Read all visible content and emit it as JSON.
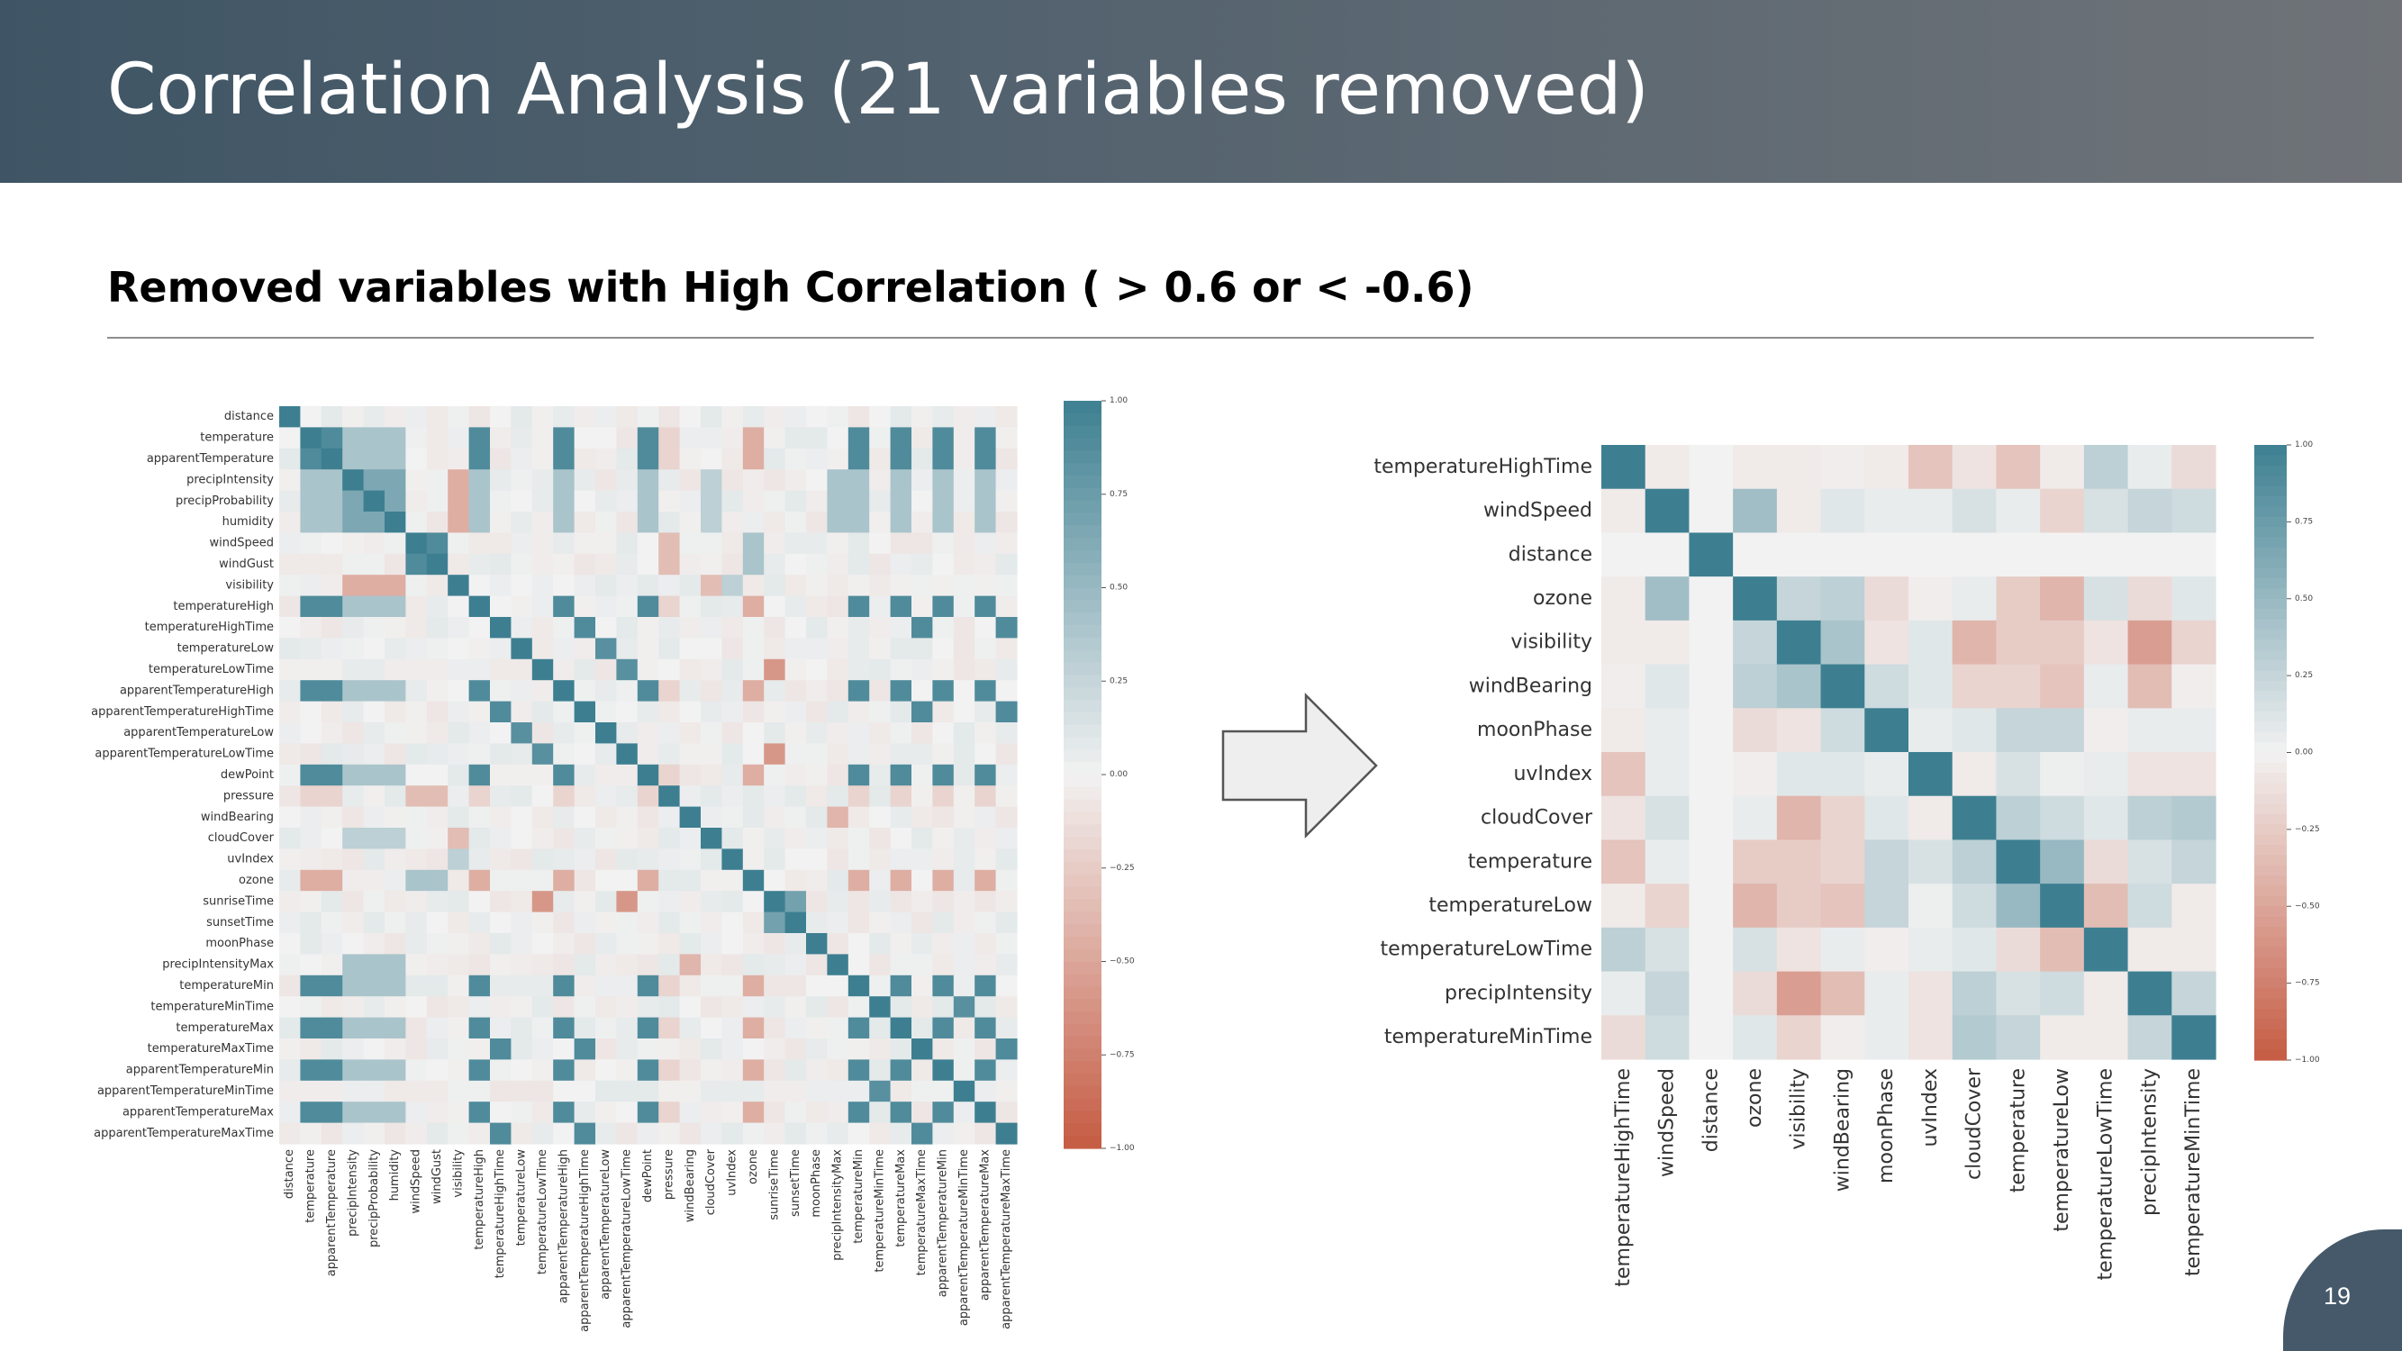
{
  "slide": {
    "title": "Correlation Analysis (21 variables removed)",
    "subtitle": "Removed variables with High Correlation ( > 0.6 or < -0.6)",
    "page_number": "19",
    "colors": {
      "header_start": "#3f5565",
      "header_end": "#6f7378",
      "positive": "#3d7f91",
      "neutral": "#f2f2f2",
      "negative": "#c65a42"
    },
    "icons": [
      "right-arrow-icon"
    ]
  },
  "chart_data": [
    {
      "type": "heatmap",
      "title": "",
      "variables": [
        "distance",
        "temperature",
        "apparentTemperature",
        "precipIntensity",
        "precipProbability",
        "humidity",
        "windSpeed",
        "windGust",
        "visibility",
        "temperatureHigh",
        "temperatureHighTime",
        "temperatureLow",
        "temperatureLowTime",
        "apparentTemperatureHigh",
        "apparentTemperatureHighTime",
        "apparentTemperatureLow",
        "apparentTemperatureLowTime",
        "dewPoint",
        "pressure",
        "windBearing",
        "cloudCover",
        "uvIndex",
        "ozone",
        "sunriseTime",
        "sunsetTime",
        "moonPhase",
        "precipIntensityMax",
        "temperatureMin",
        "temperatureMinTime",
        "temperatureMax",
        "temperatureMaxTime",
        "apparentTemperatureMin",
        "apparentTemperatureMinTime",
        "apparentTemperatureMax",
        "apparentTemperatureMaxTime"
      ],
      "colorbar": {
        "range": [
          -1.0,
          1.0
        ],
        "ticks": [
          "1.00",
          "0.75",
          "0.50",
          "0.25",
          "0.00",
          "−0.25",
          "−0.50",
          "−0.75",
          "−1.00"
        ]
      },
      "groups": [
        {
          "members": [
            1,
            2,
            9,
            13,
            17,
            27,
            29,
            31,
            33
          ],
          "value": 0.9
        },
        {
          "members": [
            3,
            4,
            5
          ],
          "value": 0.65
        },
        {
          "members": [
            6,
            7
          ],
          "value": 0.9
        },
        {
          "members": [
            10,
            14,
            30,
            34
          ],
          "value": 0.9
        },
        {
          "members": [
            11,
            15
          ],
          "value": 0.85
        },
        {
          "members": [
            12,
            16
          ],
          "value": 0.85
        },
        {
          "members": [
            28,
            32
          ],
          "value": 0.85
        }
      ],
      "pairs": [
        {
          "a": 8,
          "b": 5,
          "value": -0.7
        },
        {
          "a": 8,
          "b": 4,
          "value": -0.6
        },
        {
          "a": 8,
          "b": 3,
          "value": -0.45
        },
        {
          "a": 6,
          "b": 18,
          "value": -0.45
        },
        {
          "a": 7,
          "b": 18,
          "value": -0.35
        },
        {
          "a": 6,
          "b": 22,
          "value": 0.45
        },
        {
          "a": 7,
          "b": 22,
          "value": 0.4
        },
        {
          "a": 19,
          "b": 26,
          "value": -0.4
        },
        {
          "a": 3,
          "b": 26,
          "value": 0.45
        },
        {
          "a": 4,
          "b": 26,
          "value": 0.4
        },
        {
          "a": 23,
          "b": 12,
          "value": -0.6
        },
        {
          "a": 23,
          "b": 16,
          "value": -0.6
        },
        {
          "a": 23,
          "b": 24,
          "value": 0.7
        },
        {
          "a": 22,
          "b": 13,
          "value": -0.45
        },
        {
          "a": 22,
          "b": 1,
          "value": -0.3
        },
        {
          "a": 22,
          "b": 33,
          "value": -0.45
        },
        {
          "a": 20,
          "b": 5,
          "value": 0.3
        },
        {
          "a": 20,
          "b": 8,
          "value": -0.35
        },
        {
          "a": 21,
          "b": 8,
          "value": 0.3
        },
        {
          "a": 17,
          "b": 5,
          "value": 0.4
        },
        {
          "a": 18,
          "b": 1,
          "value": -0.2
        },
        {
          "a": 25,
          "b": 0,
          "value": 0.0
        }
      ]
    },
    {
      "type": "heatmap",
      "title": "",
      "variables": [
        "temperatureHighTime",
        "windSpeed",
        "distance",
        "ozone",
        "visibility",
        "windBearing",
        "moonPhase",
        "uvIndex",
        "cloudCover",
        "temperature",
        "temperatureLow",
        "temperatureLowTime",
        "precipIntensity",
        "temperatureMinTime"
      ],
      "colorbar": {
        "range": [
          -1.0,
          1.0
        ],
        "ticks": [
          "1.00",
          "0.75",
          "0.50",
          "0.25",
          "0.00",
          "−0.25",
          "−0.50",
          "−0.75",
          "−1.00"
        ]
      },
      "matrix": [
        [
          1.0,
          -0.05,
          0.0,
          -0.05,
          -0.05,
          -0.03,
          -0.05,
          -0.3,
          -0.1,
          -0.3,
          -0.05,
          0.3,
          0.05,
          -0.15
        ],
        [
          -0.05,
          1.0,
          0.0,
          0.45,
          -0.05,
          0.1,
          0.05,
          0.05,
          0.15,
          0.05,
          -0.2,
          0.15,
          0.25,
          0.2
        ],
        [
          0.0,
          0.0,
          1.0,
          0.0,
          0.0,
          0.0,
          0.0,
          0.0,
          0.0,
          0.0,
          0.0,
          0.0,
          0.0,
          0.0
        ],
        [
          -0.05,
          0.45,
          0.0,
          1.0,
          0.25,
          0.3,
          -0.15,
          -0.03,
          0.05,
          -0.25,
          -0.4,
          0.15,
          -0.15,
          0.1
        ],
        [
          -0.05,
          -0.05,
          0.0,
          0.25,
          1.0,
          0.4,
          -0.1,
          0.1,
          -0.4,
          -0.25,
          -0.25,
          -0.1,
          -0.55,
          -0.2
        ],
        [
          -0.03,
          0.1,
          0.0,
          0.3,
          0.4,
          1.0,
          0.2,
          0.1,
          -0.2,
          -0.2,
          -0.3,
          0.05,
          -0.35,
          -0.03
        ],
        [
          -0.05,
          0.05,
          0.0,
          -0.15,
          -0.1,
          0.2,
          1.0,
          0.05,
          0.1,
          0.25,
          0.25,
          -0.03,
          0.05,
          0.05
        ],
        [
          -0.3,
          0.05,
          0.0,
          -0.03,
          0.1,
          0.1,
          0.05,
          1.0,
          -0.05,
          0.15,
          0.03,
          0.05,
          -0.1,
          -0.1
        ],
        [
          -0.1,
          0.15,
          0.0,
          0.05,
          -0.4,
          -0.2,
          0.1,
          -0.05,
          1.0,
          0.3,
          0.2,
          0.1,
          0.3,
          0.35
        ],
        [
          -0.3,
          0.05,
          0.0,
          -0.25,
          -0.25,
          -0.2,
          0.25,
          0.15,
          0.3,
          1.0,
          0.5,
          -0.15,
          0.15,
          0.25
        ],
        [
          -0.05,
          -0.2,
          0.0,
          -0.4,
          -0.25,
          -0.3,
          0.25,
          0.03,
          0.2,
          0.5,
          1.0,
          -0.35,
          0.2,
          -0.05
        ],
        [
          0.3,
          0.15,
          0.0,
          0.15,
          -0.1,
          0.05,
          -0.03,
          0.05,
          0.1,
          -0.15,
          -0.35,
          1.0,
          -0.05,
          -0.05
        ],
        [
          0.05,
          0.25,
          0.0,
          -0.15,
          -0.55,
          -0.35,
          0.05,
          -0.1,
          0.3,
          0.15,
          0.2,
          -0.05,
          1.0,
          0.25
        ],
        [
          -0.15,
          0.2,
          0.0,
          0.1,
          -0.2,
          -0.03,
          0.05,
          -0.1,
          0.35,
          0.25,
          -0.05,
          -0.05,
          0.25,
          1.0
        ]
      ]
    }
  ]
}
